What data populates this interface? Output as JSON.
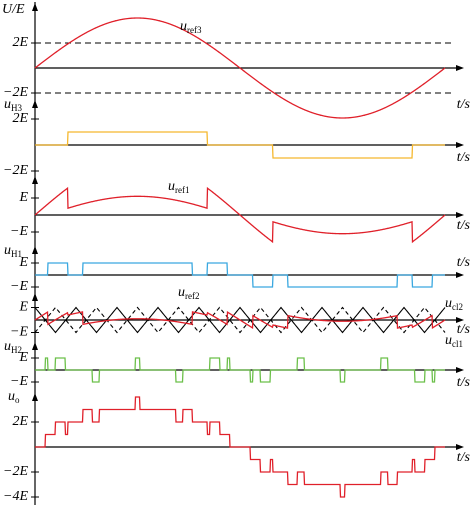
{
  "panels": [
    {
      "y_label": "U/E",
      "series_label": {
        "symbol": "u",
        "subscript": "ref3"
      },
      "ticks": [
        "2E",
        "−2E"
      ],
      "x_label": "t/s"
    },
    {
      "y_label": {
        "symbol": "u",
        "subscript": "H3"
      },
      "ticks": [
        "2E",
        "−2E"
      ],
      "x_label": "t/s"
    },
    {
      "series_label": {
        "symbol": "u",
        "subscript": "ref1"
      },
      "ticks": [
        "E",
        "−E"
      ],
      "x_label": "t/s"
    },
    {
      "y_label": {
        "symbol": "u",
        "subscript": "H1"
      },
      "ticks": [
        "E",
        "−E"
      ],
      "x_label": "t/s"
    },
    {
      "series_label": {
        "symbol": "u",
        "subscript": "ref2"
      },
      "carrier_labels": [
        {
          "symbol": "u",
          "subscript": "cl2"
        },
        {
          "symbol": "u",
          "subscript": "cl1"
        }
      ],
      "ticks": [
        "E",
        "−E"
      ],
      "x_label": "t/s"
    },
    {
      "y_label": {
        "symbol": "u",
        "subscript": "H2"
      },
      "ticks": [
        "E",
        "−E"
      ],
      "x_label": "t/s"
    },
    {
      "y_label": {
        "symbol": "u",
        "subscript": "o"
      },
      "ticks": [
        "2E",
        "−2E",
        "−4E"
      ],
      "x_label": "t/s"
    }
  ]
}
